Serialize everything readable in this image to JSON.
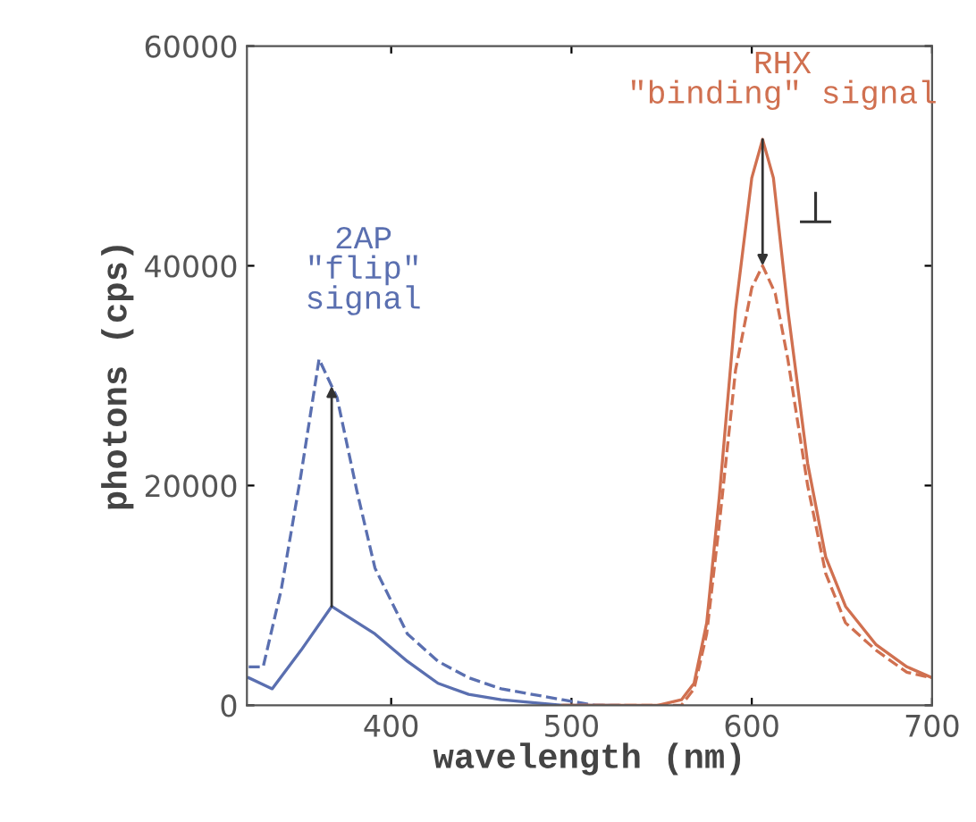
{
  "chart_data": {
    "type": "line",
    "xlabel": "wavelength (nm)",
    "ylabel": "photons (cps)",
    "xlim": [
      320,
      700
    ],
    "ylim": [
      0,
      60000
    ],
    "xticks": [
      400,
      500,
      600,
      700
    ],
    "yticks": [
      0,
      20000,
      40000,
      60000
    ],
    "grid": false,
    "marker": "none",
    "series": [
      {
        "color": "#5a6fb0",
        "line_style": "solid",
        "x": [
          321,
          334,
          350,
          367,
          391,
          409,
          426,
          443,
          461,
          495,
          520
        ],
        "values": [
          2500,
          1500,
          5000,
          9000,
          6500,
          4000,
          2000,
          1000,
          500,
          0,
          0
        ]
      },
      {
        "color": "#5a6fb0",
        "line_style": "dashed",
        "x": [
          321,
          329,
          339,
          350,
          360,
          370,
          381,
          391,
          409,
          426,
          443,
          461,
          478,
          495,
          513,
          530
        ],
        "values": [
          3500,
          3500,
          10500,
          21000,
          31500,
          28000,
          19500,
          12500,
          6500,
          4000,
          2500,
          1500,
          1000,
          500,
          0,
          0
        ]
      },
      {
        "color": "#d07050",
        "line_style": "solid",
        "x": [
          495,
          548,
          561,
          568,
          575,
          582,
          591,
          600,
          606,
          612,
          620,
          631,
          641,
          652,
          669,
          686,
          700
        ],
        "values": [
          0,
          0,
          500,
          2000,
          7500,
          19000,
          36000,
          48000,
          51500,
          48000,
          36000,
          22000,
          13500,
          9000,
          5500,
          3500,
          2500
        ]
      },
      {
        "color": "#d07050",
        "line_style": "dashed",
        "x": [
          495,
          548,
          561,
          568,
          575,
          582,
          591,
          600,
          606,
          613,
          620,
          631,
          641,
          652,
          669,
          686,
          700
        ],
        "values": [
          0,
          0,
          0,
          1500,
          6500,
          16500,
          30500,
          38000,
          40000,
          37500,
          31500,
          20000,
          12000,
          7500,
          5000,
          3000,
          2500
        ]
      }
    ],
    "annotations": [
      "2AP\n\"flip\"\nsignal",
      {
        "text": "RHX\n\"binding\" signal",
        "x": 606,
        "y": 51500
      },
      "⊥"
    ]
  }
}
